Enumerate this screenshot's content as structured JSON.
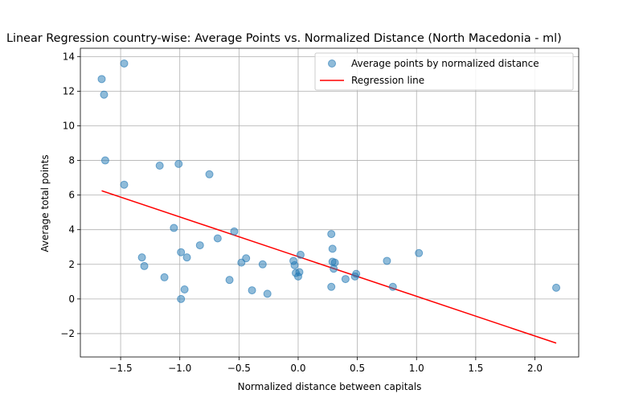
{
  "chart_data": {
    "type": "scatter",
    "title": "Linear Regression country-wise: Average Points vs. Normalized Distance (North Macedonia - ml)",
    "xlabel": "Normalized distance between capitals",
    "ylabel": "Average total points",
    "xlim": [
      -1.84,
      2.37
    ],
    "ylim": [
      -3.35,
      14.48
    ],
    "xticks": [
      -1.5,
      -1.0,
      -0.5,
      0.0,
      0.5,
      1.0,
      1.5,
      2.0
    ],
    "xtick_labels": [
      "−1.5",
      "−1.0",
      "−0.5",
      "0.0",
      "0.5",
      "1.0",
      "1.5",
      "2.0"
    ],
    "yticks": [
      -2,
      0,
      2,
      4,
      6,
      8,
      10,
      12,
      14
    ],
    "ytick_labels": [
      "−2",
      "0",
      "2",
      "4",
      "6",
      "8",
      "10",
      "12",
      "14"
    ],
    "grid": true,
    "legend_position": "top-right",
    "series": [
      {
        "name": "Average points by normalized distance",
        "kind": "scatter",
        "color": "#1f77b4",
        "points": [
          {
            "x": -1.66,
            "y": 12.7
          },
          {
            "x": -1.64,
            "y": 11.8
          },
          {
            "x": -1.63,
            "y": 8.0
          },
          {
            "x": -1.47,
            "y": 13.6
          },
          {
            "x": -1.47,
            "y": 6.6
          },
          {
            "x": -1.32,
            "y": 2.4
          },
          {
            "x": -1.3,
            "y": 1.9
          },
          {
            "x": -1.17,
            "y": 7.7
          },
          {
            "x": -1.13,
            "y": 1.25
          },
          {
            "x": -1.05,
            "y": 4.1
          },
          {
            "x": -1.01,
            "y": 7.8
          },
          {
            "x": -0.99,
            "y": 2.7
          },
          {
            "x": -0.99,
            "y": 0.0
          },
          {
            "x": -0.96,
            "y": 0.55
          },
          {
            "x": -0.94,
            "y": 2.4
          },
          {
            "x": -0.83,
            "y": 3.1
          },
          {
            "x": -0.75,
            "y": 7.2
          },
          {
            "x": -0.68,
            "y": 3.5
          },
          {
            "x": -0.58,
            "y": 1.1
          },
          {
            "x": -0.54,
            "y": 3.9
          },
          {
            "x": -0.48,
            "y": 2.1
          },
          {
            "x": -0.44,
            "y": 2.35
          },
          {
            "x": -0.39,
            "y": 0.5
          },
          {
            "x": -0.3,
            "y": 2.0
          },
          {
            "x": -0.26,
            "y": 0.3
          },
          {
            "x": -0.04,
            "y": 2.2
          },
          {
            "x": -0.03,
            "y": 1.95
          },
          {
            "x": -0.02,
            "y": 1.5
          },
          {
            "x": 0.0,
            "y": 1.3
          },
          {
            "x": 0.01,
            "y": 1.55
          },
          {
            "x": 0.02,
            "y": 2.55
          },
          {
            "x": 0.28,
            "y": 3.75
          },
          {
            "x": 0.28,
            "y": 0.7
          },
          {
            "x": 0.29,
            "y": 2.9
          },
          {
            "x": 0.29,
            "y": 2.15
          },
          {
            "x": 0.3,
            "y": 1.75
          },
          {
            "x": 0.31,
            "y": 2.1
          },
          {
            "x": 0.4,
            "y": 1.15
          },
          {
            "x": 0.48,
            "y": 1.3
          },
          {
            "x": 0.49,
            "y": 1.45
          },
          {
            "x": 0.75,
            "y": 2.2
          },
          {
            "x": 0.8,
            "y": 0.7
          },
          {
            "x": 1.02,
            "y": 2.65
          },
          {
            "x": 2.18,
            "y": 0.65
          }
        ]
      },
      {
        "name": "Regression line",
        "kind": "line",
        "color": "#ff0000",
        "points": [
          {
            "x": -1.66,
            "y": 6.25
          },
          {
            "x": 2.18,
            "y": -2.55
          }
        ]
      }
    ]
  }
}
